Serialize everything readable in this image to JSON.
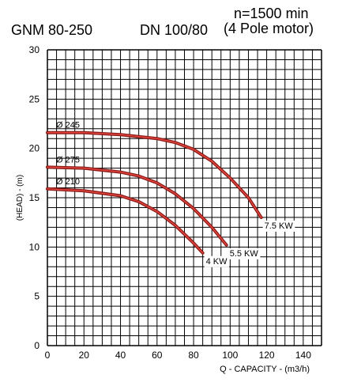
{
  "header": {
    "model": "GNM 80-250",
    "dn": "DN 100/80",
    "speed": "n=1500 min",
    "motor": "(4 Pole motor)"
  },
  "chart_data": {
    "type": "line",
    "xlabel": "Q - CAPACITY - (m3/h)",
    "ylabel": "(HEAD) - (m)",
    "xlim": [
      0,
      150
    ],
    "ylim": [
      0,
      30
    ],
    "xticks": [
      0,
      20,
      40,
      60,
      80,
      100,
      120,
      140
    ],
    "yticks": [
      0,
      5,
      10,
      15,
      20,
      25,
      30
    ],
    "grid": true,
    "colors": {
      "curve": "#8B1A1A",
      "curve_core": "#E8483C",
      "grid": "#000000"
    },
    "series": [
      {
        "name": "Ø 245",
        "power": "7.5 KW",
        "x": [
          0,
          20,
          40,
          60,
          70,
          80,
          90,
          100,
          110,
          117
        ],
        "y": [
          21.6,
          21.6,
          21.4,
          21.0,
          20.6,
          19.9,
          18.7,
          17.0,
          15.0,
          13.0
        ]
      },
      {
        "name": "Ø 275",
        "power": "5.5 KW",
        "x": [
          0,
          20,
          40,
          50,
          60,
          70,
          80,
          90,
          98
        ],
        "y": [
          18.1,
          18.0,
          17.6,
          17.2,
          16.5,
          15.4,
          13.9,
          12.0,
          10.2
        ]
      },
      {
        "name": "Ø 210",
        "power": "4 KW",
        "x": [
          0,
          20,
          40,
          50,
          60,
          70,
          80,
          85
        ],
        "y": [
          15.9,
          15.7,
          15.2,
          14.6,
          13.6,
          12.2,
          10.4,
          9.4
        ]
      }
    ]
  }
}
